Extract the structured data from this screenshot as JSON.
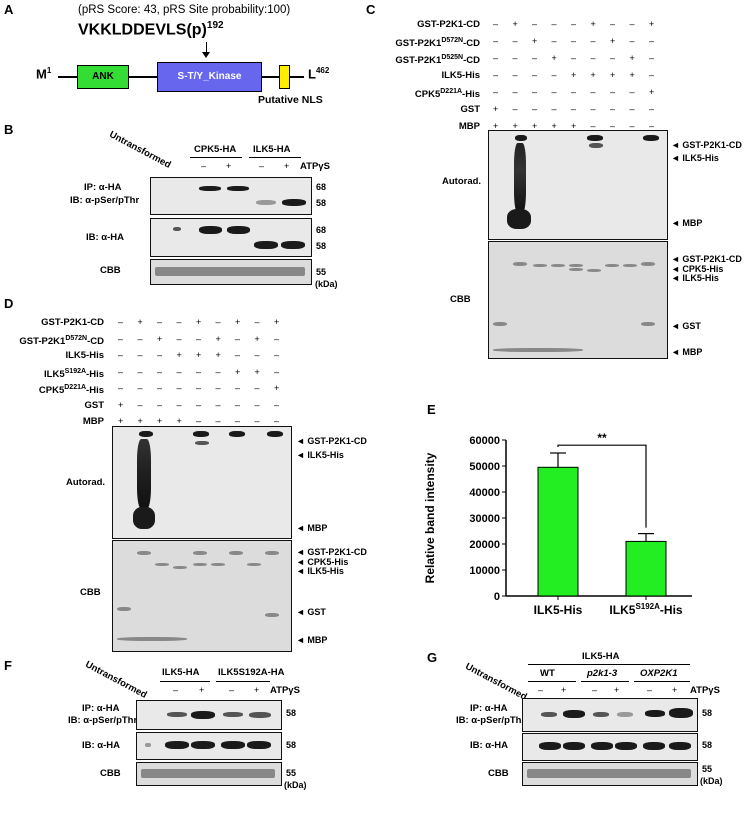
{
  "panel_a": {
    "label": "A",
    "score_text": "(pRS Score: 43, pRS Site probability:100)",
    "peptide": "VKKLDDEVLS(p)",
    "peptide_pos": "192",
    "start": "M",
    "start_sup": "1",
    "end": "L",
    "end_sup": "462",
    "domain_ank": "ANK",
    "domain_kinase": "S-T/Y_Kinase",
    "nls": "Putative NLS",
    "colors": {
      "ank": "#33dd33",
      "kinase": "#6666ee",
      "nls": "#ffee00"
    }
  },
  "panel_b": {
    "label": "B",
    "untransformed": "Untransformed",
    "groups": [
      "CPK5-HA",
      "ILK5-HA"
    ],
    "atp": "ATPγS",
    "signs": [
      "–",
      "+",
      "–",
      "+"
    ],
    "row1_l1": "IP: α-HA",
    "row1_l2": "IB: α-pSer/pThr",
    "row2": "IB: α-HA",
    "row3": "CBB",
    "m68": "68",
    "m58": "58",
    "m68b": "68",
    "m58b": "58",
    "m55": "55",
    "unit": "(kDa)"
  },
  "panel_c": {
    "label": "C",
    "rows": [
      {
        "name": "GST-P2K1-CD",
        "signs": [
          "–",
          "+",
          "–",
          "–",
          "–",
          "+",
          "–",
          "–",
          "+"
        ]
      },
      {
        "name": "GST-P2K1D572N-CD",
        "signs": [
          "–",
          "–",
          "+",
          "–",
          "–",
          "–",
          "+",
          "–",
          "–"
        ]
      },
      {
        "name": "GST-P2K1D525N-CD",
        "signs": [
          "–",
          "–",
          "–",
          "+",
          "–",
          "–",
          "–",
          "+",
          "–"
        ]
      },
      {
        "name": "ILK5-His",
        "signs": [
          "–",
          "–",
          "–",
          "–",
          "+",
          "+",
          "+",
          "+",
          "–"
        ]
      },
      {
        "name": "CPK5D221A-His",
        "signs": [
          "–",
          "–",
          "–",
          "–",
          "–",
          "–",
          "–",
          "–",
          "+"
        ]
      },
      {
        "name": "GST",
        "signs": [
          "+",
          "–",
          "–",
          "–",
          "–",
          "–",
          "–",
          "–",
          "–"
        ]
      },
      {
        "name": "MBP",
        "signs": [
          "+",
          "+",
          "+",
          "+",
          "+",
          "–",
          "–",
          "–",
          "–"
        ]
      }
    ],
    "autorad": "Autorad.",
    "cbb": "CBB",
    "arrows_autorad": [
      "GST-P2K1-CD",
      "ILK5-His",
      "MBP"
    ],
    "arrows_cbb": [
      "GST-P2K1-CD",
      "CPK5-His",
      "ILK5-His",
      "GST",
      "MBP"
    ]
  },
  "panel_d": {
    "label": "D",
    "rows": [
      {
        "name": "GST-P2K1-CD",
        "signs": [
          "–",
          "+",
          "–",
          "–",
          "+",
          "–",
          "+",
          "–",
          "+"
        ]
      },
      {
        "name": "GST-P2K1D572N-CD",
        "signs": [
          "–",
          "–",
          "+",
          "–",
          "–",
          "+",
          "–",
          "+",
          "–"
        ]
      },
      {
        "name": "ILK5-His",
        "signs": [
          "–",
          "–",
          "–",
          "+",
          "+",
          "+",
          "–",
          "–",
          "–"
        ]
      },
      {
        "name": "ILK5S192A-His",
        "signs": [
          "–",
          "–",
          "–",
          "–",
          "–",
          "–",
          "+",
          "+",
          "–"
        ]
      },
      {
        "name": "CPK5D221A-His",
        "signs": [
          "–",
          "–",
          "–",
          "–",
          "–",
          "–",
          "–",
          "–",
          "+"
        ]
      },
      {
        "name": "GST",
        "signs": [
          "+",
          "–",
          "–",
          "–",
          "–",
          "–",
          "–",
          "–",
          "–"
        ]
      },
      {
        "name": "MBP",
        "signs": [
          "+",
          "+",
          "+",
          "+",
          "–",
          "–",
          "–",
          "–",
          "–"
        ]
      }
    ],
    "autorad": "Autorad.",
    "cbb": "CBB",
    "arrows_autorad": [
      "GST-P2K1-CD",
      "ILK5-His",
      "MBP"
    ],
    "arrows_cbb": [
      "GST-P2K1-CD",
      "CPK5-His",
      "ILK5-His",
      "GST",
      "MBP"
    ]
  },
  "panel_e": {
    "label": "E",
    "sig": "**",
    "chart_data": {
      "type": "bar",
      "categories": [
        "ILK5-His",
        "ILK5S192A-His"
      ],
      "values": [
        49500,
        21000
      ],
      "errors": [
        5500,
        3000
      ],
      "ylabel": "Relative band intensity",
      "ylim": [
        0,
        60000
      ],
      "yticks": [
        "0",
        "10000",
        "20000",
        "30000",
        "40000",
        "50000",
        "60000"
      ],
      "bar_color": "#22ee22"
    }
  },
  "panel_f": {
    "label": "F",
    "untransformed": "Untransformed",
    "groups": [
      "ILK5-HA",
      "ILK5S192A-HA"
    ],
    "atp": "ATPγS",
    "signs": [
      "–",
      "+",
      "–",
      "+"
    ],
    "row1_l1": "IP: α-HA",
    "row1_l2": "IB: α-pSer/pThr",
    "row2": "IB: α-HA",
    "row3": "CBB",
    "m58": "58",
    "m58b": "58",
    "m55": "55",
    "unit": "(kDa)"
  },
  "panel_g": {
    "label": "G",
    "untransformed": "Untransformed",
    "top": "ILK5-HA",
    "groups": [
      "WT",
      "p2k1-3",
      "OXP2K1"
    ],
    "atp": "ATPγS",
    "signs": [
      "–",
      "+",
      "–",
      "+",
      "–",
      "+"
    ],
    "row1_l1": "IP: α-HA",
    "row1_l2": "IB: α-pSer/pThr",
    "row2": "IB: α-HA",
    "row3": "CBB",
    "m58": "58",
    "m58b": "58",
    "m55": "55",
    "unit": "(kDa)"
  }
}
